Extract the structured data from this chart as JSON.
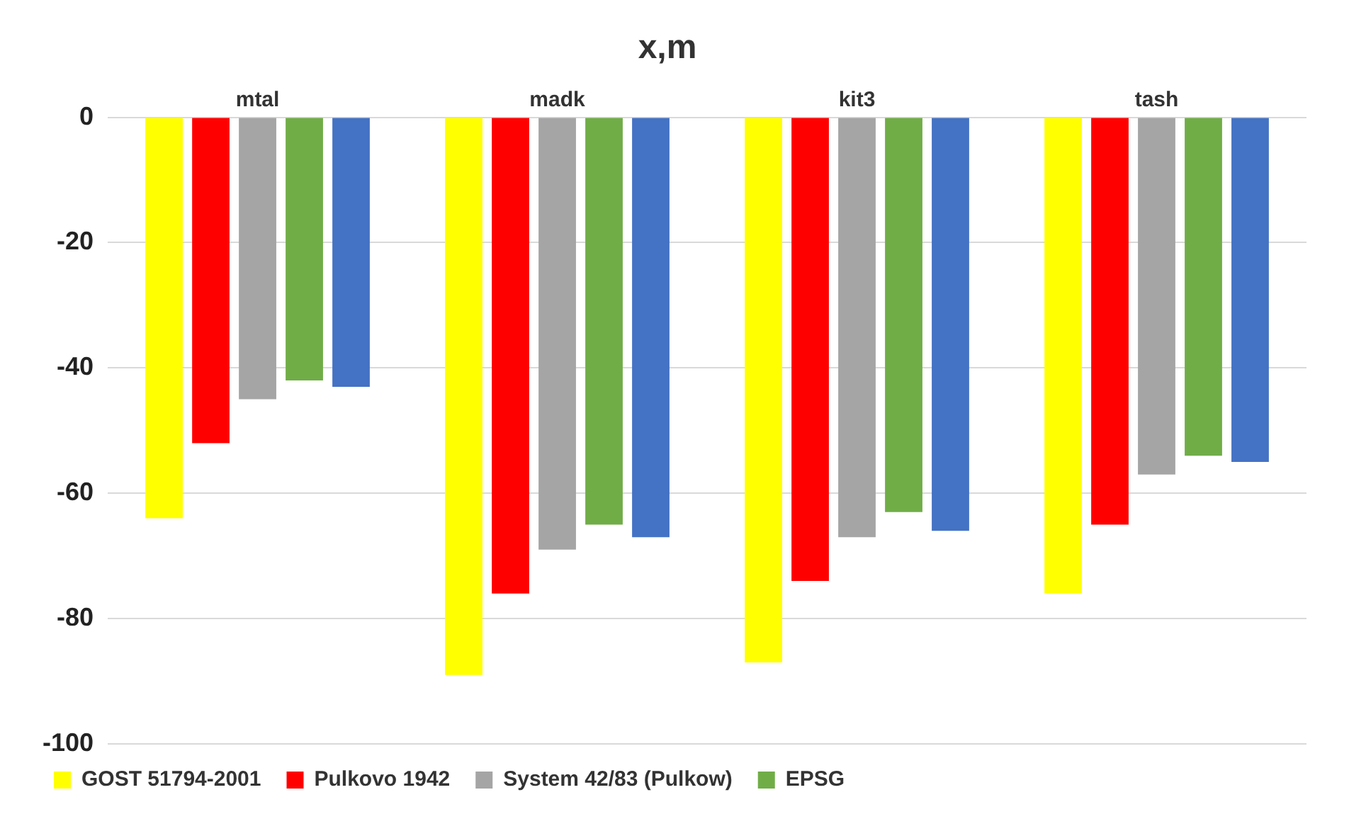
{
  "chart_data": {
    "type": "bar",
    "title": "x,m",
    "categories": [
      "mtal",
      "madk",
      "kit3",
      "tash"
    ],
    "series": [
      {
        "name": "GOST 51794-2001",
        "color": "#ffff00",
        "values": [
          -64,
          -89,
          -87,
          -76
        ]
      },
      {
        "name": "Pulkovo 1942",
        "color": "#ff0000",
        "values": [
          -52,
          -76,
          -74,
          -65
        ]
      },
      {
        "name": "System 42/83 (Pulkow)",
        "color": "#a5a5a5",
        "values": [
          -45,
          -69,
          -67,
          -57
        ]
      },
      {
        "name": "EPSG",
        "color": "#70ad47",
        "values": [
          -42,
          -65,
          -63,
          -54
        ]
      },
      {
        "color": "#4472c4",
        "values": [
          -43,
          -67,
          -66,
          -55
        ]
      }
    ],
    "ylim": [
      -100,
      0
    ],
    "yticks": [
      -100,
      -80,
      -60,
      -40,
      -20,
      0
    ],
    "grid": "y",
    "legend": "bottom"
  }
}
